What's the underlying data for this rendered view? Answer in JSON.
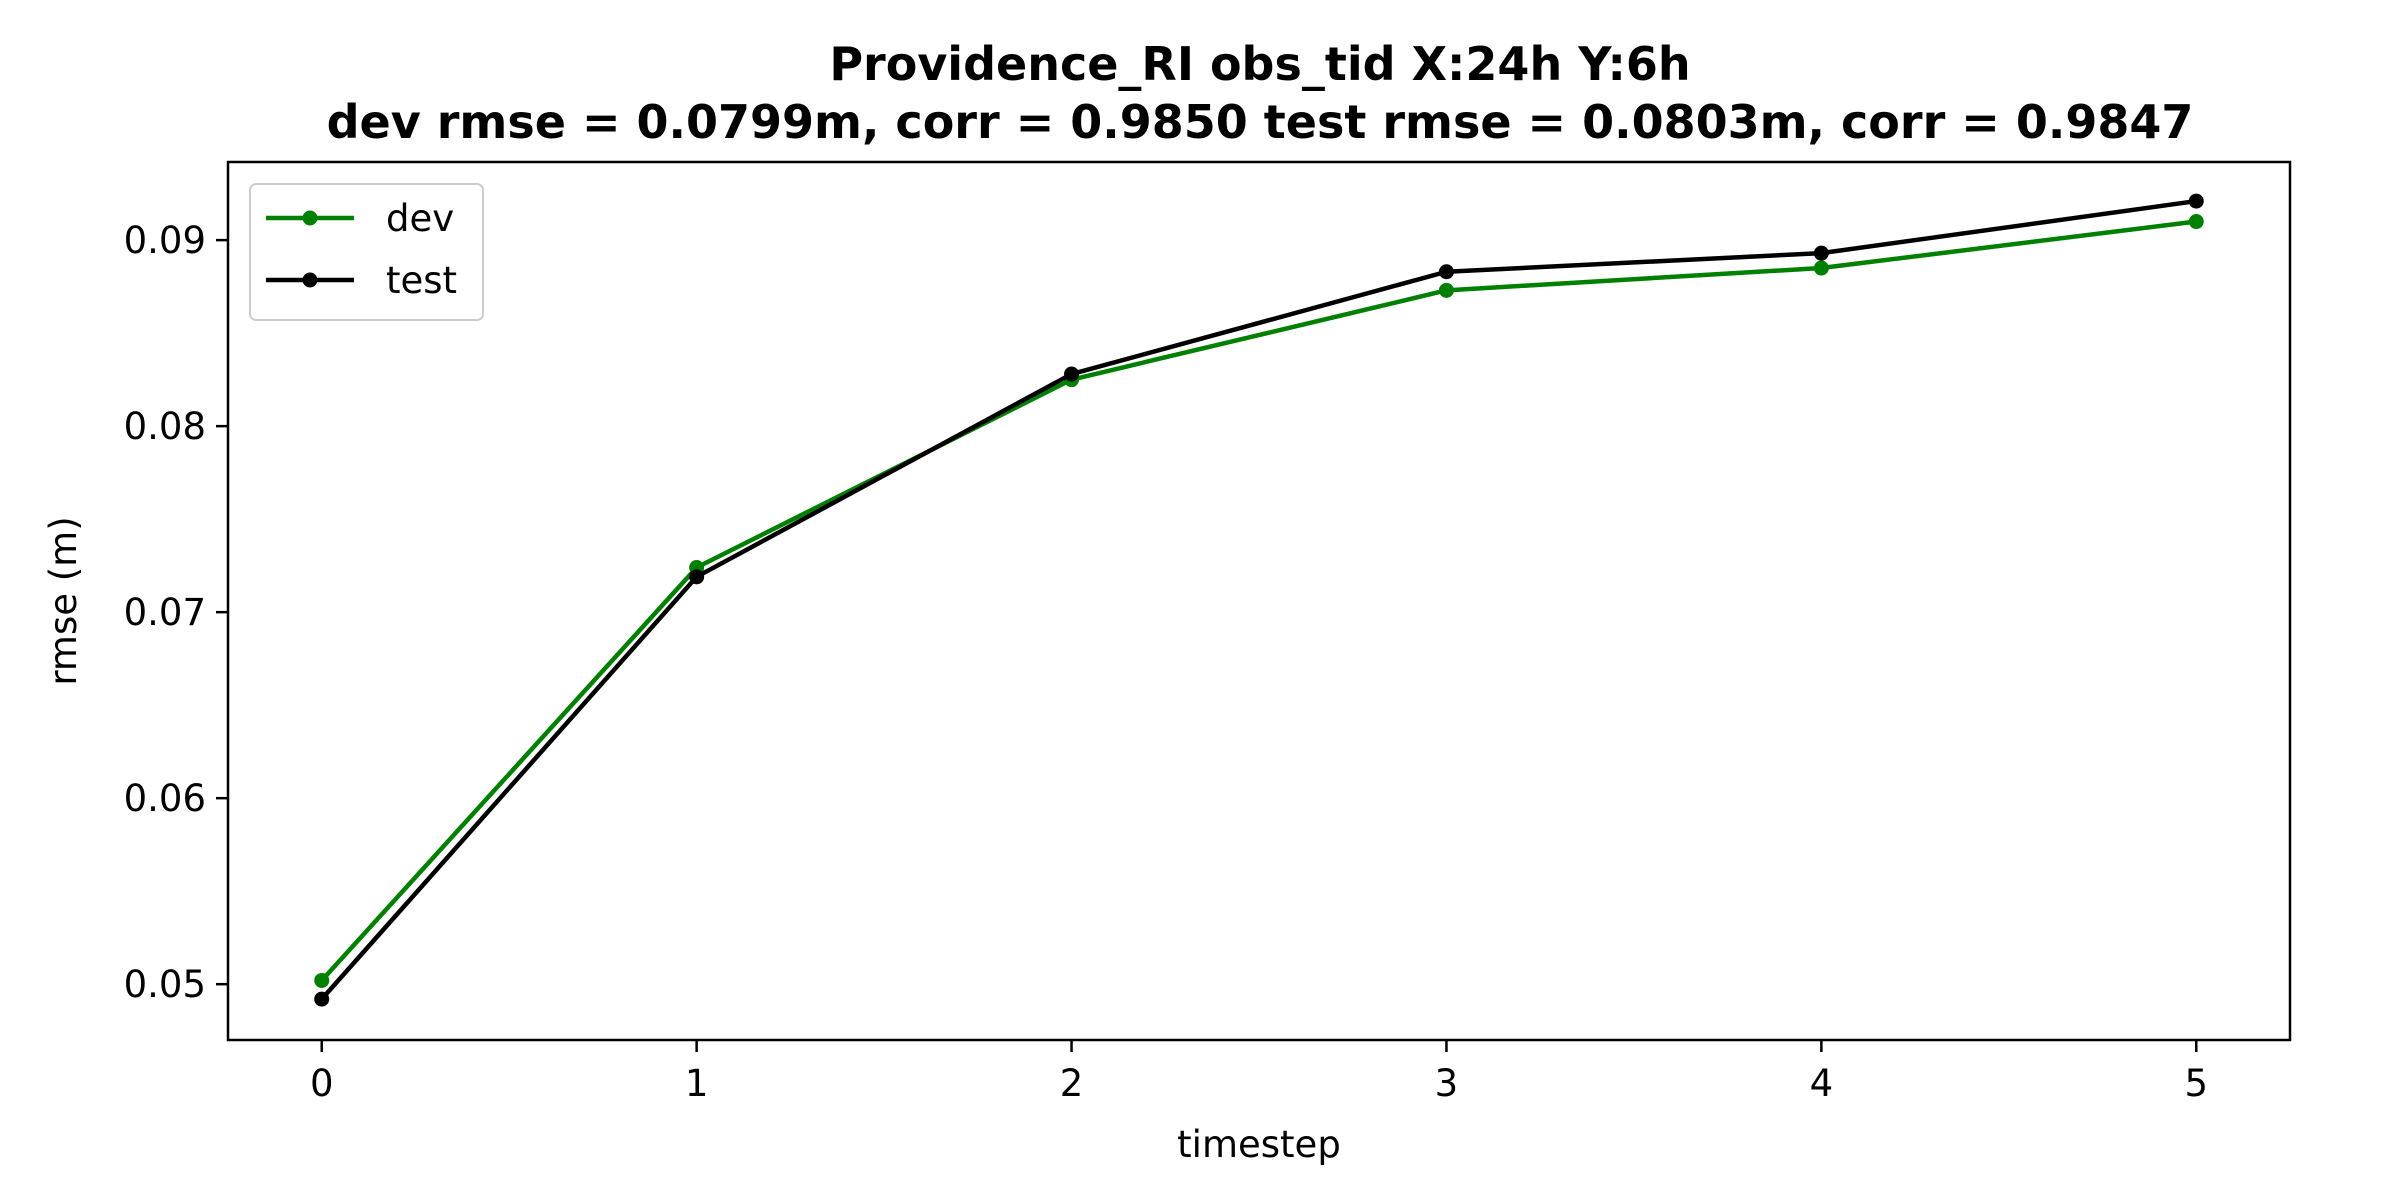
{
  "chart_data": {
    "type": "line",
    "title": "Providence_RI   obs_tid   X:24h   Y:6h",
    "subtitle": "dev rmse = 0.0799m, corr = 0.9850   test rmse = 0.0803m, corr = 0.9847",
    "xlabel": "timestep",
    "ylabel": "rmse (m)",
    "x": [
      0,
      1,
      2,
      3,
      4,
      5
    ],
    "xlim": [
      -0.25,
      5.25
    ],
    "ylim": [
      0.047,
      0.0942
    ],
    "xticks": [
      "0",
      "1",
      "2",
      "3",
      "4",
      "5"
    ],
    "yticks": [
      0.05,
      0.06,
      0.07,
      0.08,
      0.09
    ],
    "ytick_labels": [
      "0.05",
      "0.06",
      "0.07",
      "0.08",
      "0.09"
    ],
    "grid": false,
    "legend_position": "top-left",
    "series": [
      {
        "name": "dev",
        "color": "#008000",
        "values": [
          0.0502,
          0.0724,
          0.0825,
          0.0873,
          0.0885,
          0.091
        ]
      },
      {
        "name": "test",
        "color": "#000000",
        "values": [
          0.0492,
          0.0719,
          0.0828,
          0.0883,
          0.0893,
          0.0921
        ]
      }
    ]
  }
}
